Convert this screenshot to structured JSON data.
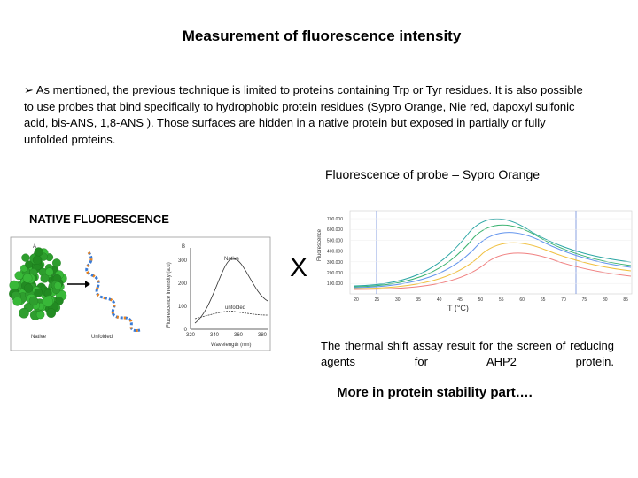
{
  "title": "Measurement of fluorescence intensity",
  "bullet": "➢",
  "paragraph": "As mentioned, the previous technique is limited to proteins containing Trp or Tyr residues. It is also possible to use probes that bind specifically to hydrophobic protein residues (Sypro Orange, Nie red, dapoxyl  sulfonic acid, bis-ANS, 1,8-ANS ). Those surfaces are hidden in a native protein but exposed in partially or fully unfolded proteins.",
  "probe_heading": "Fluorescence of probe – Sypro Orange",
  "native_heading": "NATIVE FLUORESCENCE",
  "times_sign": "X",
  "left_figure": {
    "panel_a": "A",
    "panel_b": "B",
    "native_label": "Native",
    "unfolded_label": "Unfolded",
    "y_label": "Fluorescence intensity (a.u)",
    "x_label": "Wavelength (nm)",
    "yticks": [
      "0",
      "100",
      "200",
      "300"
    ],
    "xticks": [
      "320",
      "340",
      "360",
      "380"
    ],
    "curve_native": "Native",
    "curve_unfolded": "unfolded"
  },
  "right_figure": {
    "y_label": "Fluorescence",
    "x_label": "T (°C)",
    "yticks": [
      "700.000",
      "600.000",
      "500.000",
      "400.000",
      "300.000",
      "200.000",
      "100.000"
    ],
    "xticks": [
      "20",
      "25",
      "30",
      "35",
      "40",
      "45",
      "50",
      "55",
      "60",
      "65",
      "70",
      "75",
      "80",
      "85"
    ]
  },
  "caption": "The thermal shift assay result for the screen of reducing agents for AHP2 protein.",
  "more": "More in protein stability part…."
}
